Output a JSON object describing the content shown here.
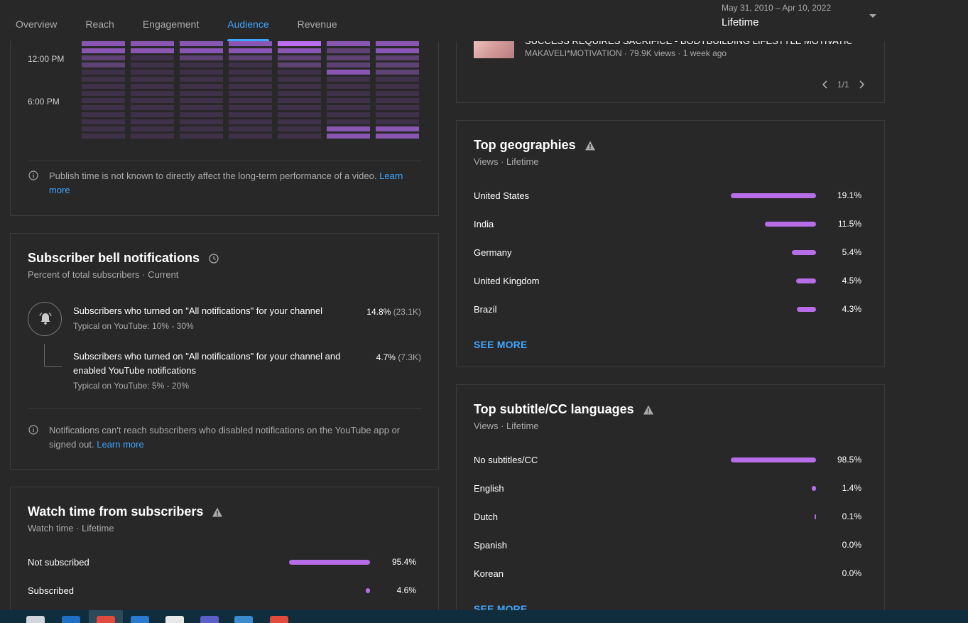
{
  "header": {
    "tabs": [
      {
        "label": "Overview",
        "active": false
      },
      {
        "label": "Reach",
        "active": false
      },
      {
        "label": "Engagement",
        "active": false
      },
      {
        "label": "Audience",
        "active": true
      },
      {
        "label": "Revenue",
        "active": false
      }
    ],
    "date_range": "May 31, 2010 – Apr 10, 2022",
    "date_preset": "Lifetime"
  },
  "publish_heatmap": {
    "y_labels": [
      "12:00 PM",
      "6:00 PM"
    ],
    "columns": [
      [
        3,
        3,
        2,
        2,
        1,
        1,
        1,
        1,
        1,
        1,
        1,
        1,
        1,
        1
      ],
      [
        3,
        3,
        1,
        1,
        1,
        1,
        1,
        1,
        1,
        1,
        1,
        1,
        1,
        1
      ],
      [
        3,
        3,
        2,
        1,
        1,
        1,
        1,
        1,
        1,
        1,
        1,
        1,
        1,
        1
      ],
      [
        3,
        3,
        2,
        1,
        1,
        1,
        1,
        1,
        1,
        1,
        1,
        1,
        1,
        1
      ],
      [
        4,
        3,
        2,
        2,
        1,
        1,
        1,
        1,
        1,
        1,
        1,
        1,
        1,
        1
      ],
      [
        3,
        2,
        2,
        2,
        3,
        1,
        1,
        1,
        1,
        1,
        1,
        1,
        3,
        3
      ],
      [
        3,
        3,
        2,
        2,
        2,
        1,
        1,
        1,
        1,
        1,
        1,
        1,
        3,
        3
      ]
    ],
    "colors": {
      "1": "#3f3149",
      "2": "#5e4273",
      "3": "#8a56b4",
      "4": "#bb6ef0"
    },
    "note": "Publish time is not known to directly affect the long-term performance of a video.",
    "learn_more": "Learn more"
  },
  "top_video": {
    "title": "SUCCESS REQUIRES SACRIFICE - BODYBUILDING LIFESTYLE MOTIVATION...",
    "meta": "MAKAVELI*MOTIVATION · 79.9K views · 1 week ago",
    "pager": "1/1"
  },
  "bell_notifications": {
    "title": "Subscriber bell notifications",
    "subtitle": "Percent of total subscribers · Current",
    "metrics": [
      {
        "text": "Subscribers who turned on \"All notifications\" for your channel",
        "typical": "Typical on YouTube: 10% - 30%",
        "percent": "14.8%",
        "count": "(23.1K)"
      },
      {
        "text": "Subscribers who turned on \"All notifications\" for your channel and enabled YouTube notifications",
        "typical": "Typical on YouTube: 5% - 20%",
        "percent": "4.7%",
        "count": "(7.3K)"
      }
    ],
    "note": "Notifications can't reach subscribers who disabled notifications on the YouTube app or signed out.",
    "learn_more": "Learn more"
  },
  "watch_time_subscribers": {
    "title": "Watch time from subscribers",
    "subtitle": "Watch time · Lifetime",
    "rows": [
      {
        "label": "Not subscribed",
        "value": "95.4%",
        "fraction": 0.954
      },
      {
        "label": "Subscribed",
        "value": "4.6%",
        "fraction": 0.046
      }
    ]
  },
  "top_geographies": {
    "title": "Top geographies",
    "subtitle": "Views · Lifetime",
    "rows": [
      {
        "label": "United States",
        "value": "19.1%",
        "fraction": 1.0
      },
      {
        "label": "India",
        "value": "11.5%",
        "fraction": 0.602
      },
      {
        "label": "Germany",
        "value": "5.4%",
        "fraction": 0.283
      },
      {
        "label": "United Kingdom",
        "value": "4.5%",
        "fraction": 0.236
      },
      {
        "label": "Brazil",
        "value": "4.3%",
        "fraction": 0.225
      }
    ],
    "see_more": "SEE MORE"
  },
  "top_subtitle_languages": {
    "title": "Top subtitle/CC languages",
    "subtitle": "Views · Lifetime",
    "rows": [
      {
        "label": "No subtitles/CC",
        "value": "98.5%",
        "fraction": 1.0
      },
      {
        "label": "English",
        "value": "1.4%",
        "fraction": 0.014
      },
      {
        "label": "Dutch",
        "value": "0.1%",
        "fraction": 0.001
      },
      {
        "label": "Spanish",
        "value": "0.0%",
        "fraction": 0.0
      },
      {
        "label": "Korean",
        "value": "0.0%",
        "fraction": 0.0
      }
    ],
    "see_more": "SEE MORE"
  },
  "colors": {
    "accent": "#3ea6ff",
    "bar": "#b66de7",
    "background": "#282828"
  }
}
